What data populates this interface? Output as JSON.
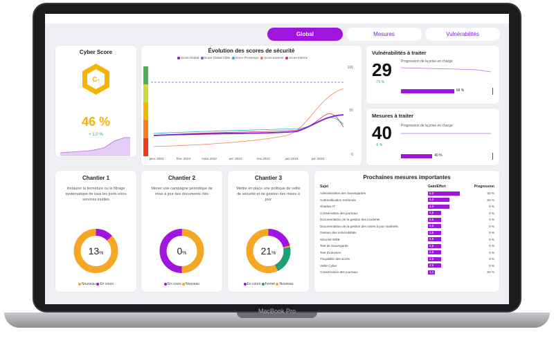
{
  "laptop": {
    "brand": "MacBook Pro"
  },
  "tabs": [
    {
      "label": "Global"
    },
    {
      "label": "Mesures"
    },
    {
      "label": "Vulnérabilités"
    }
  ],
  "cyber_score": {
    "title": "Cyber Score",
    "grade": "C-",
    "value": "46 %",
    "delta": "+ 1,0 %"
  },
  "evolution": {
    "title": "Évolution des scores de sécurité",
    "legend": [
      "Score Global",
      "Score Global Cible",
      "Score Processus",
      "Score Externe",
      "Score Interne"
    ],
    "legend_colors": [
      "#7a1fd6",
      "#4a6ad6",
      "#28b0c8",
      "#f07a50",
      "#d83050"
    ],
    "months": [
      "janv. 2023",
      "févr. 2023",
      "mars 2023",
      "avr. 2023",
      "mai 2023",
      "juin 2023",
      "juil. 2023"
    ],
    "right_ticks": [
      "100",
      "50",
      "0"
    ]
  },
  "vulns": {
    "title": "Vulnérabilités à traiter",
    "value": "29",
    "delta": "-75 %",
    "progress_label": "Progression de la prise en charge",
    "progress_text": "68 %",
    "progress": 68
  },
  "mesures": {
    "title": "Mesures à traiter",
    "value": "40",
    "delta": "-6 %",
    "progress_label": "Progression de la prise en charge",
    "progress_text": "40 %",
    "progress": 40
  },
  "chantiers": [
    {
      "title": "Chantier 1",
      "desc": "Instaurer la fermeture ou le filtrage systématique de tous les ports et/ou services inutiles",
      "pct_num": "13",
      "pct_sign": "%",
      "percent": 13,
      "legend": [
        "Nouveau",
        "En cours"
      ]
    },
    {
      "title": "Chantier 2",
      "desc": "Mener une campagne périodique de mise à jour des documents clés",
      "pct_num": "0",
      "pct_sign": "%",
      "percent": 0,
      "legend": [
        "En cours",
        "Nouveau"
      ]
    },
    {
      "title": "Chantier 3",
      "desc": "Mettre en place une politique de veille de sécurité et de gestion des mises à jour",
      "pct_num": "21",
      "pct_sign": "%",
      "percent": 21,
      "legend": [
        "En cours",
        "Fermé",
        "Nouveau"
      ]
    }
  ],
  "prochaines": {
    "title": "Prochaines mesures importantes",
    "headers": {
      "subject": "Sujet",
      "gain": "Gain/Effort",
      "progression": "Progression"
    },
    "rows": [
      {
        "subject": "Administration des Sauvegardes",
        "gain": "6,0",
        "gain_value": 6.0,
        "progression": "50 %"
      },
      {
        "subject": "Authentification renforcée",
        "gain": "4,0",
        "gain_value": 4.0,
        "progression": "50 %"
      },
      {
        "subject": "Shadow IT",
        "gain": "4,0",
        "gain_value": 4.0,
        "progression": "0 %"
      },
      {
        "subject": "Conservation des journaux",
        "gain": "2,5",
        "gain_value": 2.5,
        "progression": "0 %"
      },
      {
        "subject": "Documentation de la gestion des incidents",
        "gain": "2,5",
        "gain_value": 2.5,
        "progression": "0 %"
      },
      {
        "subject": "Documentation de la gestion des mises à jour matériels",
        "gain": "2,5",
        "gain_value": 2.5,
        "progression": "0 %"
      },
      {
        "subject": "Gestion des vulnérabilités",
        "gain": "2,5",
        "gain_value": 2.5,
        "progression": "0 %"
      },
      {
        "subject": "Sécurité WEB",
        "gain": "2,5",
        "gain_value": 2.5,
        "progression": "0 %"
      },
      {
        "subject": "Test de Sauvegarde",
        "gain": "2,5",
        "gain_value": 2.5,
        "progression": "0 %"
      },
      {
        "subject": "Test d'intrusion",
        "gain": "2,5",
        "gain_value": 2.5,
        "progression": "0 %"
      },
      {
        "subject": "Traçabilité des accès",
        "gain": "2,5",
        "gain_value": 2.5,
        "progression": "0 %"
      },
      {
        "subject": "Veille Cyber",
        "gain": "2,5",
        "gain_value": 2.5,
        "progression": "0 %"
      },
      {
        "subject": "Conservation des journaux",
        "gain": "1,3",
        "gain_value": 1.3,
        "progression": "50 %"
      }
    ]
  },
  "colors": {
    "accent": "#a014e0",
    "gold": "#f4b400",
    "green": "#23a86b",
    "orange": "#f5a623"
  }
}
